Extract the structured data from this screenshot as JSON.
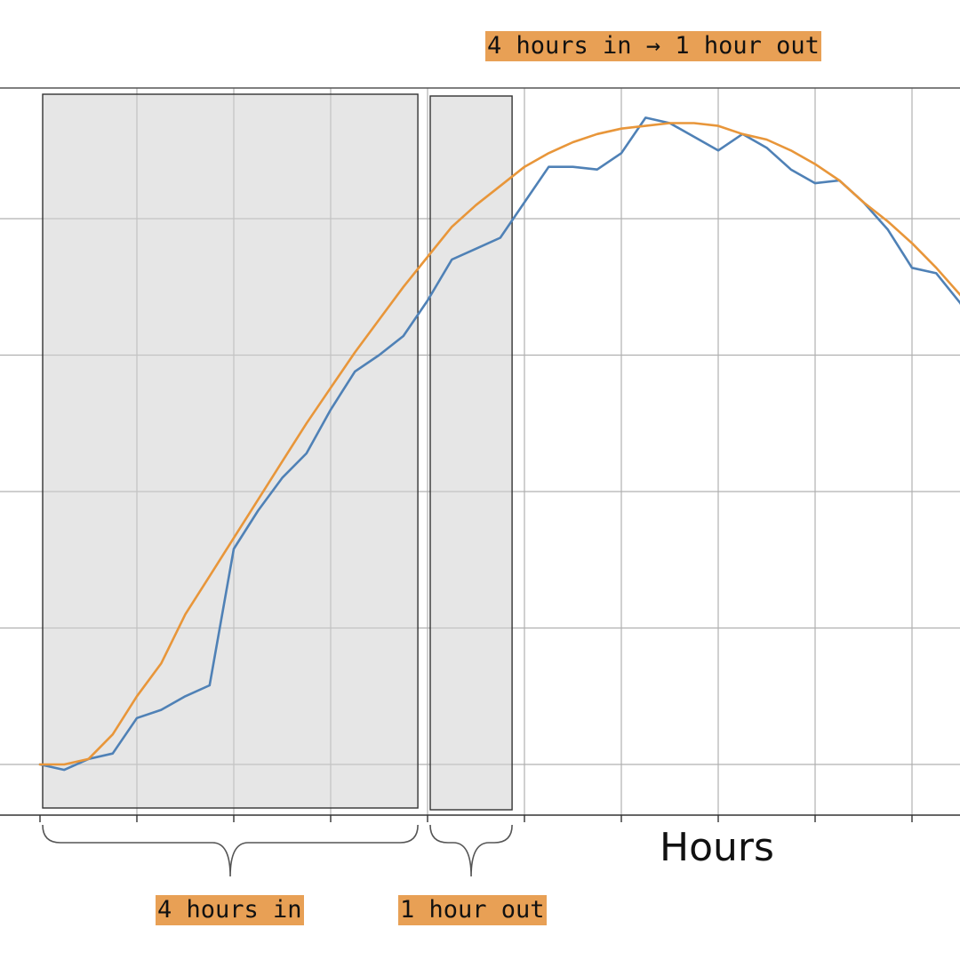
{
  "chart_data": {
    "type": "line",
    "title": "4 hours in → 1 hour out",
    "xlabel": "Hours",
    "ylabel": "",
    "xlim": [
      -0.02,
      9.7
    ],
    "ylim": [
      -0.18,
      2.5
    ],
    "grid": true,
    "legend": "none",
    "series": [
      {
        "color": "#4f81b6",
        "x": [
          0,
          0.25,
          0.5,
          0.75,
          1.0,
          1.25,
          1.5,
          1.75,
          2.0,
          2.25,
          2.5,
          2.75,
          3.0,
          3.25,
          3.5,
          3.75,
          4.0,
          4.25,
          4.5,
          4.75,
          5.0,
          5.25,
          5.5,
          5.75,
          6.0,
          6.25,
          6.5,
          6.75,
          7.0,
          7.25,
          7.5,
          7.75,
          8.0,
          8.25,
          8.5,
          8.75,
          9.0,
          9.25,
          9.5,
          9.7
        ],
        "y": [
          0.0,
          -0.02,
          0.02,
          0.04,
          0.17,
          0.2,
          0.25,
          0.29,
          0.79,
          0.93,
          1.05,
          1.14,
          1.3,
          1.44,
          1.5,
          1.57,
          1.7,
          1.85,
          1.89,
          1.93,
          2.06,
          2.19,
          2.19,
          2.18,
          2.24,
          2.37,
          2.35,
          2.3,
          2.25,
          2.31,
          2.26,
          2.18,
          2.13,
          2.14,
          2.06,
          1.96,
          1.82,
          1.8,
          1.69,
          1.55
        ]
      },
      {
        "color": "#e8963a",
        "x": [
          0,
          0.25,
          0.5,
          0.75,
          1.0,
          1.25,
          1.5,
          1.75,
          2.0,
          2.25,
          2.5,
          2.75,
          3.0,
          3.25,
          3.5,
          3.75,
          4.0,
          4.25,
          4.5,
          4.75,
          5.0,
          5.25,
          5.5,
          5.75,
          6.0,
          6.25,
          6.5,
          6.75,
          7.0,
          7.25,
          7.5,
          7.75,
          8.0,
          8.25,
          8.5,
          8.75,
          9.0,
          9.25,
          9.5,
          9.7
        ],
        "y": [
          0.0,
          0.0,
          0.02,
          0.11,
          0.25,
          0.37,
          0.55,
          0.69,
          0.83,
          0.97,
          1.11,
          1.25,
          1.38,
          1.51,
          1.63,
          1.75,
          1.86,
          1.97,
          2.05,
          2.12,
          2.19,
          2.24,
          2.28,
          2.31,
          2.33,
          2.34,
          2.35,
          2.35,
          2.34,
          2.31,
          2.29,
          2.25,
          2.2,
          2.14,
          2.06,
          1.99,
          1.91,
          1.82,
          1.72,
          1.63
        ]
      }
    ],
    "windows": [
      {
        "label": "4 hours in",
        "start": 0,
        "end": 3.9
      },
      {
        "label": "1 hour out",
        "start": 4.0,
        "end": 4.9
      }
    ]
  }
}
